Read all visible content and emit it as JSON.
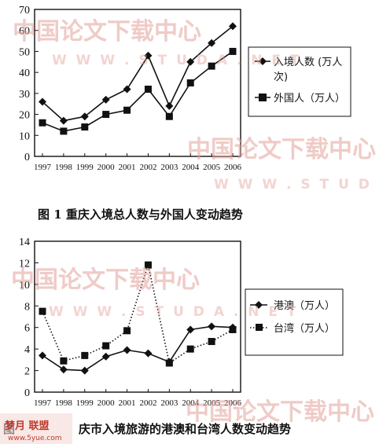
{
  "watermark": {
    "cn": "中国论文下载中心",
    "url": "W W W . S T U D A . N E T",
    "site": "梦月 联盟",
    "site_url": "www.5yue.com"
  },
  "chart_data": [
    {
      "type": "line",
      "caption": "图 1   重庆入境总人数与外国人变动趋势",
      "categories": [
        "1997",
        "1998",
        "1999",
        "2000",
        "2001",
        "2002",
        "2003",
        "2004",
        "2005",
        "2006"
      ],
      "ylim": [
        0,
        70
      ],
      "yticks": [
        0,
        10,
        20,
        30,
        40,
        50,
        60,
        70
      ],
      "grid": false,
      "legend_position": "right",
      "series": [
        {
          "name": "入境人数（万人次）",
          "name_line1": "入境人数 (万人",
          "name_line2": "次)",
          "marker": "diamond",
          "values": [
            26,
            17,
            19,
            27,
            32,
            48,
            24,
            45,
            54,
            62
          ]
        },
        {
          "name": "外国人（万人）",
          "marker": "square",
          "values": [
            16,
            12,
            14,
            20,
            22,
            32,
            19,
            35,
            43,
            50
          ]
        }
      ]
    },
    {
      "type": "line",
      "caption": "图 2   重庆市入境旅游的港澳和台湾人数变动趋势",
      "caption_visible": "庆市入境旅游的港澳和台湾人数变动趋势",
      "categories": [
        "1997",
        "1998",
        "1999",
        "2000",
        "2001",
        "2002",
        "2003",
        "2004",
        "2005",
        "2006"
      ],
      "ylim": [
        0,
        14
      ],
      "yticks": [
        0,
        2,
        4,
        6,
        8,
        10,
        12,
        14
      ],
      "grid": false,
      "legend_position": "right",
      "series": [
        {
          "name": "港澳（万人）",
          "marker": "diamond",
          "line": "solid",
          "values": [
            3.4,
            2.1,
            2.0,
            3.3,
            3.9,
            3.6,
            2.8,
            5.8,
            6.1,
            6.0
          ]
        },
        {
          "name": "台湾（万人）",
          "marker": "square",
          "line": "dotted",
          "values": [
            7.5,
            2.9,
            3.4,
            4.3,
            5.7,
            11.8,
            2.7,
            4.0,
            4.7,
            5.8
          ]
        }
      ]
    }
  ]
}
